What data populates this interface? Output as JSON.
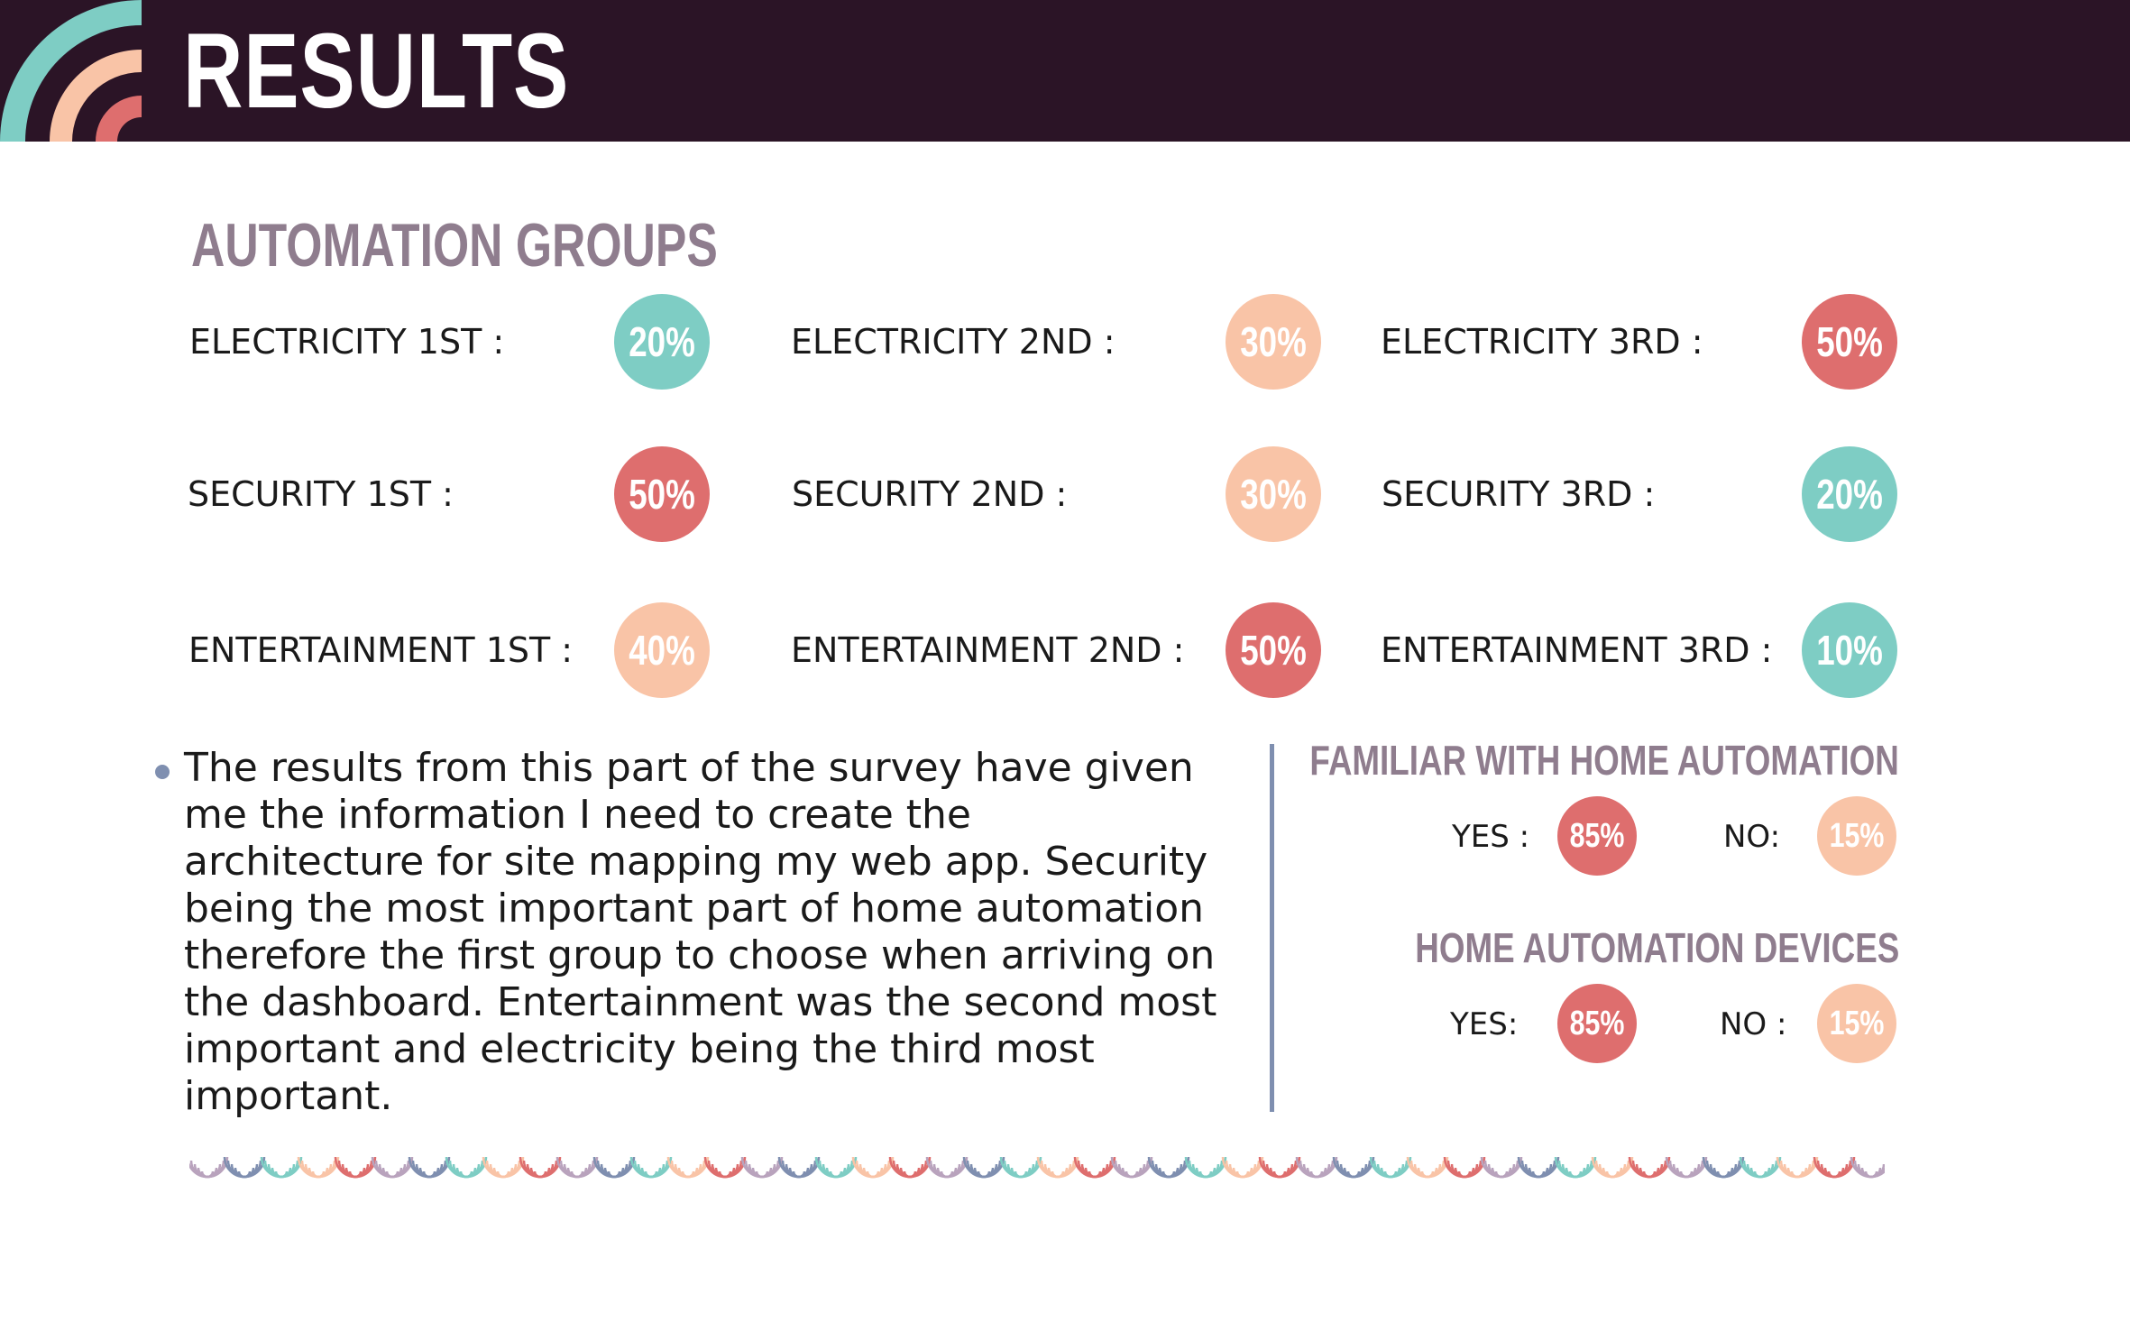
{
  "header": {
    "title": "RESULTS"
  },
  "colors": {
    "header_bg": "#2b1426",
    "teal": "#7ecdc4",
    "peach": "#f9c4a7",
    "coral": "#de6e6e",
    "muted": "#8f7d8e",
    "slate": "#7f8fb0"
  },
  "automation_groups": {
    "title": "AUTOMATION GROUPS",
    "rows": [
      {
        "items": [
          {
            "label": "ELECTRICITY 1ST :",
            "value": "20%",
            "color": "teal"
          },
          {
            "label": "ELECTRICITY 2ND :",
            "value": "30%",
            "color": "peach"
          },
          {
            "label": "ELECTRICITY 3RD :",
            "value": "50%",
            "color": "coral"
          }
        ]
      },
      {
        "items": [
          {
            "label": "SECURITY 1ST :",
            "value": "50%",
            "color": "coral"
          },
          {
            "label": "SECURITY 2ND :",
            "value": "30%",
            "color": "peach"
          },
          {
            "label": "SECURITY 3RD :",
            "value": "20%",
            "color": "teal"
          }
        ]
      },
      {
        "items": [
          {
            "label": "ENTERTAINMENT 1ST :",
            "value": "40%",
            "color": "peach"
          },
          {
            "label": "ENTERTAINMENT 2ND :",
            "value": "50%",
            "color": "coral"
          },
          {
            "label": "ENTERTAINMENT 3RD :",
            "value": "10%",
            "color": "teal"
          }
        ]
      }
    ]
  },
  "summary": {
    "text": "The results from this part of the survey have given me the information I need to create the architecture for site mapping my web app. Security being the most important part of home automation therefore the first group to choose when arriving on the dashboard. Entertainment was the second most important and electricity being the third most important."
  },
  "familiar": {
    "title": "FAMILIAR WITH HOME AUTOMATION",
    "yes_label": "YES :",
    "yes_value": "85%",
    "no_label": "NO:",
    "no_value": "15%"
  },
  "devices": {
    "title": "HOME AUTOMATION DEVICES",
    "yes_label": "YES:",
    "yes_value": "85%",
    "no_label": "NO :",
    "no_value": "15%"
  }
}
